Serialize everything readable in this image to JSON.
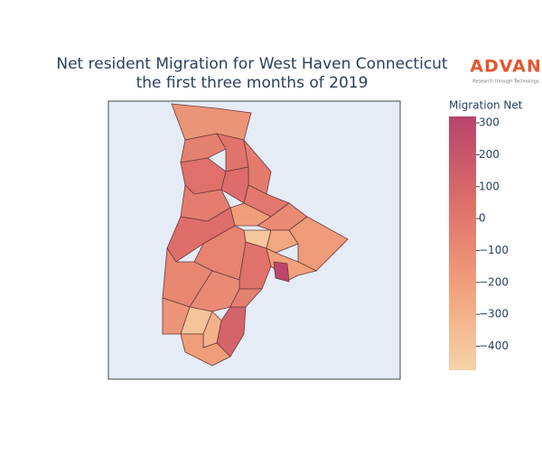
{
  "chart_data": {
    "type": "choropleth",
    "title": "Net resident Migration for West Haven Connecticut",
    "subtitle": "the first three months of 2019",
    "colorbar_title": "Migration Net",
    "values": [
      -150,
      -50,
      20,
      -20,
      40,
      60,
      0,
      -30,
      -200,
      50,
      -100,
      -420,
      -250,
      -180,
      -60,
      -80,
      30,
      -220,
      300,
      -100,
      -400,
      -150,
      120,
      -300,
      -200,
      -50
    ],
    "colorscale": [
      [
        0,
        "#f6d3a8"
      ],
      [
        0.33,
        "#f1a07b"
      ],
      [
        0.66,
        "#de6e6a"
      ],
      [
        1,
        "#b8436b"
      ]
    ],
    "clim": [
      -475,
      320
    ],
    "cticks": [
      {
        "value": -400,
        "label": "−400"
      },
      {
        "value": -300,
        "label": "−300"
      },
      {
        "value": -200,
        "label": "−200"
      },
      {
        "value": -100,
        "label": "−100"
      },
      0,
      100,
      200,
      300
    ],
    "logo": {
      "name": "ADVAN",
      "tagline": "Research through Technology"
    }
  }
}
